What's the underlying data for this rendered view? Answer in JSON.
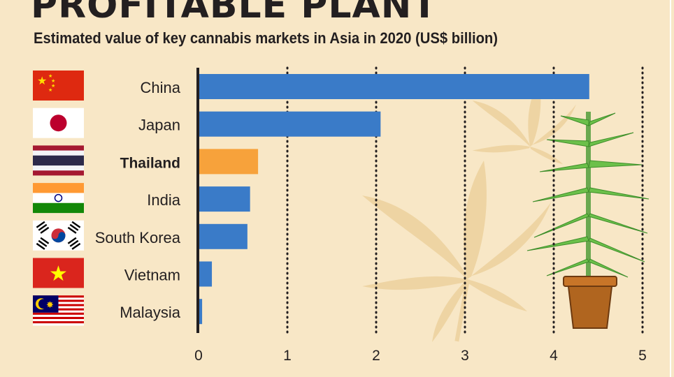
{
  "title": "PROFITABLE PLANT",
  "subtitle": "Estimated value of key cannabis markets in Asia in 2020 (US$ billion)",
  "colors": {
    "background": "#f8e7c6",
    "bar_default": "#3a7bc8",
    "bar_highlight": "#f7a23b",
    "text": "#231f20"
  },
  "chart_data": {
    "type": "bar",
    "orientation": "horizontal",
    "title": "PROFITABLE PLANT",
    "subtitle": "Estimated value of key cannabis markets in Asia in 2020 (US$ billion)",
    "xlabel": "",
    "ylabel": "",
    "categories": [
      "China",
      "Japan",
      "Thailand",
      "India",
      "South Korea",
      "Vietnam",
      "Malaysia"
    ],
    "values": [
      4.4,
      2.05,
      0.67,
      0.58,
      0.55,
      0.15,
      0.04
    ],
    "highlight": "Thailand",
    "xlim": [
      0,
      5
    ],
    "xticks": [
      "0",
      "1",
      "2",
      "3",
      "4",
      "5"
    ],
    "grid": true,
    "grid_style": "dotted vertical",
    "flags": [
      "china-flag-icon",
      "japan-flag-icon",
      "thailand-flag-icon",
      "india-flag-icon",
      "south-korea-flag-icon",
      "vietnam-flag-icon",
      "malaysia-flag-icon"
    ]
  }
}
